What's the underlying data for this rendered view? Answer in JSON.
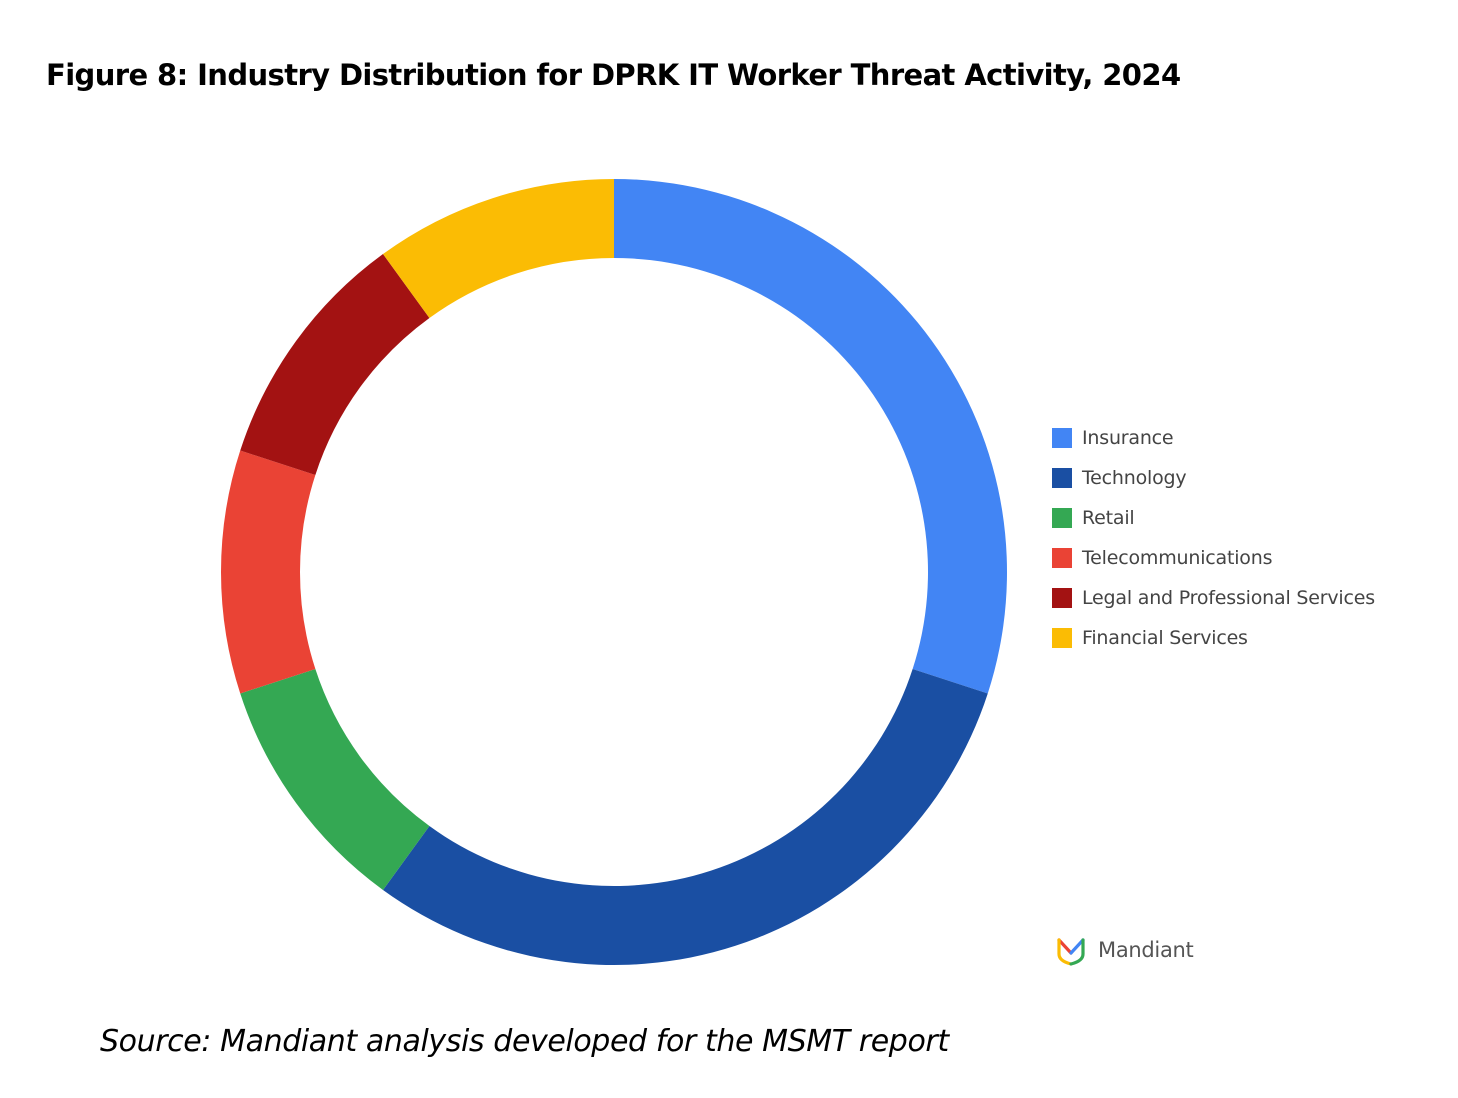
{
  "page": {
    "figure_title": "Figure 8: Industry Distribution for DPRK IT Worker Threat Activity, 2024",
    "source": "Source: Mandiant analysis developed for the MSMT report",
    "logo_text": "Mandiant"
  },
  "chart_data": {
    "type": "pie",
    "variant": "donut",
    "title": "Figure 8: Industry Distribution for DPRK IT Worker Threat Activity, 2024",
    "legend_position": "right",
    "start_angle_deg": 0,
    "direction": "clockwise",
    "series": [
      {
        "name": "Insurance",
        "value": 30,
        "color": "#4285F4"
      },
      {
        "name": "Technology",
        "value": 30,
        "color": "#1A4FA3"
      },
      {
        "name": "Retail",
        "value": 10,
        "color": "#34A853"
      },
      {
        "name": "Telecommunications",
        "value": 10,
        "color": "#EA4335"
      },
      {
        "name": "Legal and Professional Services",
        "value": 10,
        "color": "#A31212"
      },
      {
        "name": "Financial Services",
        "value": 10,
        "color": "#FBBC04"
      }
    ]
  }
}
